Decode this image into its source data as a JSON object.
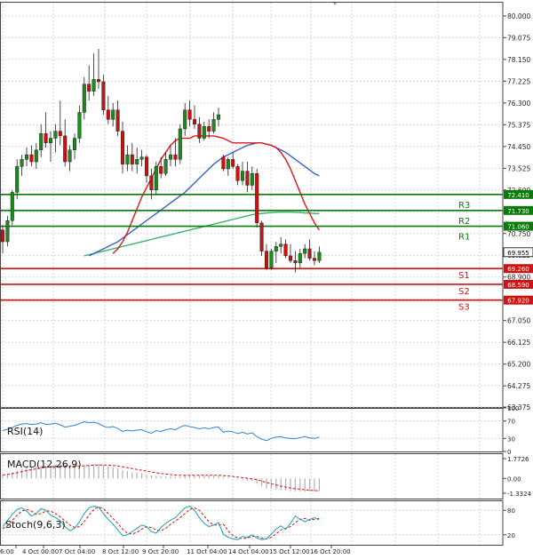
{
  "colors": {
    "background": "#ffffff",
    "grid": "#d6d6d6",
    "candle_up": "#1e8a1e",
    "candle_down": "#cc1111",
    "wick": "#222222",
    "ma_fast": "#e01818",
    "ma_mid": "#3a5fcd",
    "ma_slow": "#3cb371",
    "resistance": "#0a7a0a",
    "support": "#d41111",
    "current_price": "#000000",
    "indicator_line": "#2f7fd0",
    "signal_dash": "#d41111",
    "hist": "#b0b0b0"
  },
  "chart_data": [
    {
      "type": "candlestick",
      "title": "",
      "ylabel": "",
      "ylim": [
        63.375,
        80.6
      ],
      "y_ticks": [
        "80.000",
        "79.075",
        "78.150",
        "77.225",
        "76.300",
        "75.375",
        "74.450",
        "73.525",
        "72.600",
        "71.675",
        "70.750",
        "69.825",
        "68.900",
        "67.975",
        "67.050",
        "66.125",
        "65.200",
        "64.275",
        "63.375"
      ],
      "x_labels": [
        "6:00",
        "4 Oct 00:00",
        "7 Oct 04:00",
        "8 Oct 12:00",
        "9 Oct 20:00",
        "11 Oct 04:00",
        "14 Oct 04:00",
        "15 Oct 12:00",
        "16 Oct 20:00"
      ],
      "candles": [
        [
          70.9,
          71.1,
          69.9,
          70.4
        ],
        [
          70.4,
          71.5,
          70.2,
          71.3
        ],
        [
          71.3,
          72.6,
          71.1,
          72.5
        ],
        [
          72.5,
          73.9,
          72.2,
          73.6
        ],
        [
          73.6,
          74.1,
          73.2,
          73.9
        ],
        [
          73.9,
          74.4,
          73.6,
          74.1
        ],
        [
          74.1,
          74.5,
          73.6,
          73.8
        ],
        [
          73.8,
          74.6,
          73.5,
          74.3
        ],
        [
          74.3,
          75.4,
          74.0,
          75.0
        ],
        [
          75.0,
          75.9,
          74.4,
          74.6
        ],
        [
          74.6,
          75.1,
          73.8,
          74.8
        ],
        [
          74.8,
          75.4,
          74.2,
          75.1
        ],
        [
          75.1,
          76.4,
          74.5,
          74.9
        ],
        [
          74.9,
          75.6,
          73.6,
          73.8
        ],
        [
          73.8,
          74.5,
          73.4,
          74.3
        ],
        [
          74.3,
          75.0,
          73.9,
          74.8
        ],
        [
          74.8,
          76.2,
          74.6,
          75.9
        ],
        [
          75.9,
          77.4,
          75.6,
          77.1
        ],
        [
          77.1,
          77.9,
          76.4,
          76.8
        ],
        [
          76.8,
          78.4,
          76.6,
          77.3
        ],
        [
          77.3,
          78.6,
          76.9,
          77.2
        ],
        [
          77.2,
          77.5,
          75.8,
          76.0
        ],
        [
          76.0,
          76.6,
          75.4,
          75.6
        ],
        [
          75.6,
          76.3,
          75.3,
          76.0
        ],
        [
          76.0,
          76.4,
          74.9,
          75.1
        ],
        [
          75.1,
          75.5,
          73.3,
          73.7
        ],
        [
          73.7,
          74.5,
          73.4,
          74.1
        ],
        [
          74.1,
          74.6,
          73.4,
          73.7
        ],
        [
          73.7,
          74.4,
          73.3,
          73.9
        ],
        [
          73.9,
          74.3,
          73.6,
          74.0
        ],
        [
          74.0,
          74.1,
          72.9,
          73.2
        ],
        [
          73.2,
          73.5,
          72.2,
          72.6
        ],
        [
          72.6,
          73.8,
          72.4,
          73.6
        ],
        [
          73.6,
          74.0,
          73.1,
          73.3
        ],
        [
          73.3,
          74.2,
          73.2,
          73.9
        ],
        [
          73.9,
          74.5,
          73.6,
          74.1
        ],
        [
          74.1,
          74.8,
          73.6,
          73.9
        ],
        [
          73.9,
          75.4,
          73.7,
          75.2
        ],
        [
          75.2,
          76.3,
          74.9,
          76.0
        ],
        [
          76.0,
          76.4,
          75.3,
          75.6
        ],
        [
          75.6,
          76.2,
          75.2,
          75.4
        ],
        [
          75.4,
          75.7,
          74.6,
          74.8
        ],
        [
          74.8,
          75.5,
          74.7,
          75.3
        ],
        [
          75.3,
          75.6,
          74.8,
          75.1
        ],
        [
          75.1,
          75.9,
          75.0,
          75.6
        ],
        [
          75.6,
          76.1,
          75.3,
          75.8
        ],
        [
          74.0,
          74.1,
          73.4,
          73.5
        ],
        [
          73.5,
          74.0,
          73.2,
          73.9
        ],
        [
          73.9,
          74.2,
          73.5,
          73.6
        ],
        [
          73.6,
          73.7,
          72.8,
          73.0
        ],
        [
          73.0,
          73.8,
          72.8,
          73.4
        ],
        [
          73.4,
          73.8,
          72.5,
          72.8
        ],
        [
          72.8,
          73.6,
          72.6,
          73.3
        ],
        [
          73.3,
          73.5,
          71.0,
          71.2
        ],
        [
          71.2,
          71.3,
          69.8,
          70.0
        ],
        [
          70.0,
          70.3,
          69.2,
          69.3
        ],
        [
          69.3,
          70.1,
          69.2,
          70.0
        ],
        [
          70.0,
          70.4,
          69.5,
          70.2
        ],
        [
          70.2,
          70.6,
          69.9,
          70.3
        ],
        [
          70.3,
          70.5,
          69.7,
          69.8
        ],
        [
          69.8,
          70.3,
          69.5,
          69.6
        ],
        [
          69.6,
          70.0,
          69.1,
          69.5
        ],
        [
          69.5,
          70.1,
          69.3,
          69.9
        ],
        [
          69.9,
          70.3,
          69.7,
          70.1
        ],
        [
          70.1,
          70.5,
          69.6,
          69.7
        ],
        [
          69.7,
          70.0,
          69.4,
          69.6
        ],
        [
          69.6,
          70.2,
          69.5,
          69.955
        ]
      ],
      "ma_fast": [
        69.9,
        70.1,
        70.4,
        70.8,
        71.3,
        71.8,
        72.3,
        72.7,
        73.1,
        73.5,
        73.9,
        74.2,
        74.5,
        74.7,
        74.8,
        74.8,
        74.8,
        74.9,
        74.9,
        74.9,
        74.9,
        74.9,
        74.85,
        74.8,
        74.7,
        74.6,
        74.6,
        74.6,
        74.6,
        74.6,
        74.6,
        74.6,
        74.55,
        74.5,
        74.4,
        74.2,
        73.9,
        73.5,
        73.0,
        72.5,
        72.0,
        71.6,
        71.2,
        70.9
      ],
      "ma_mid": [
        69.8,
        69.9,
        70.0,
        70.1,
        70.2,
        70.3,
        70.4,
        70.55,
        70.7,
        70.85,
        71.0,
        71.15,
        71.3,
        71.45,
        71.6,
        71.75,
        71.9,
        72.05,
        72.2,
        72.35,
        72.5,
        72.7,
        72.9,
        73.1,
        73.3,
        73.5,
        73.7,
        73.85,
        74.0,
        74.1,
        74.2,
        74.3,
        74.4,
        74.5,
        74.55,
        74.6,
        74.6,
        74.55,
        74.5,
        74.4,
        74.3,
        74.2,
        74.05,
        73.9,
        73.75,
        73.6,
        73.45,
        73.3,
        73.2
      ],
      "ma_slow": [
        69.8,
        69.85,
        69.9,
        69.95,
        70.0,
        70.05,
        70.1,
        70.15,
        70.2,
        70.25,
        70.3,
        70.35,
        70.4,
        70.45,
        70.5,
        70.55,
        70.6,
        70.65,
        70.7,
        70.75,
        70.8,
        70.85,
        70.9,
        70.95,
        71.0,
        71.05,
        71.1,
        71.15,
        71.2,
        71.25,
        71.3,
        71.35,
        71.4,
        71.45,
        71.5,
        71.55,
        71.58,
        71.6,
        71.62,
        71.64,
        71.65,
        71.66,
        71.66,
        71.66,
        71.65,
        71.64,
        71.62,
        71.62,
        71.6,
        71.6
      ],
      "levels": [
        {
          "name": "R3",
          "value": 72.41,
          "label": "72.410",
          "kind": "resistance"
        },
        {
          "name": "R2",
          "value": 71.73,
          "label": "71.730",
          "kind": "resistance"
        },
        {
          "name": "R1",
          "value": 71.06,
          "label": "71.060",
          "kind": "resistance"
        },
        {
          "name": "S1",
          "value": 69.26,
          "label": "69.260",
          "kind": "support"
        },
        {
          "name": "S2",
          "value": 68.59,
          "label": "68.590",
          "kind": "support"
        },
        {
          "name": "S3",
          "value": 67.92,
          "label": "67.920",
          "kind": "support"
        }
      ],
      "current_price": {
        "value": 69.955,
        "label": "69.955"
      }
    },
    {
      "type": "line",
      "title": "RSI(14)",
      "ylim": [
        0,
        100
      ],
      "y_ticks": [
        "100",
        "70",
        "30",
        "0"
      ],
      "values": [
        48,
        51,
        55,
        60,
        63,
        64,
        62,
        63,
        66,
        62,
        63,
        65,
        61,
        56,
        58,
        60,
        64,
        68,
        66,
        67,
        64,
        58,
        55,
        57,
        53,
        46,
        49,
        47,
        49,
        50,
        45,
        42,
        48,
        46,
        50,
        52,
        50,
        56,
        60,
        57,
        55,
        52,
        54,
        52,
        55,
        56,
        44,
        47,
        45,
        41,
        44,
        40,
        43,
        34,
        28,
        25,
        30,
        33,
        34,
        31,
        30,
        29,
        32,
        34,
        31,
        30,
        33
      ]
    },
    {
      "type": "bar",
      "title": "MACD(12,26,9)",
      "ylim": [
        -1.3324,
        1.7726
      ],
      "y_ticks": [
        "1.7726",
        "0.00",
        "-1.3324"
      ],
      "histogram": [
        0.3,
        0.4,
        0.55,
        0.7,
        0.85,
        0.95,
        1.0,
        1.05,
        1.1,
        1.15,
        1.15,
        1.2,
        1.2,
        1.15,
        1.1,
        1.05,
        1.1,
        1.2,
        1.25,
        1.3,
        1.3,
        1.2,
        1.1,
        1.0,
        0.9,
        0.75,
        0.65,
        0.55,
        0.5,
        0.45,
        0.35,
        0.25,
        0.22,
        0.18,
        0.17,
        0.16,
        0.14,
        0.18,
        0.25,
        0.3,
        0.3,
        0.28,
        0.28,
        0.27,
        0.28,
        0.3,
        0.15,
        0.08,
        0.02,
        -0.08,
        -0.12,
        -0.2,
        -0.25,
        -0.45,
        -0.7,
        -0.9,
        -0.95,
        -1.0,
        -1.05,
        -1.1,
        -1.15,
        -1.17,
        -1.18,
        -1.18,
        -1.18,
        -1.17,
        -1.15
      ],
      "signal": [
        0.3,
        0.35,
        0.42,
        0.5,
        0.6,
        0.7,
        0.78,
        0.85,
        0.92,
        0.98,
        1.03,
        1.07,
        1.1,
        1.12,
        1.12,
        1.11,
        1.11,
        1.13,
        1.15,
        1.18,
        1.2,
        1.2,
        1.18,
        1.15,
        1.1,
        1.04,
        0.96,
        0.88,
        0.8,
        0.73,
        0.65,
        0.57,
        0.5,
        0.44,
        0.39,
        0.34,
        0.3,
        0.28,
        0.27,
        0.28,
        0.28,
        0.28,
        0.28,
        0.28,
        0.28,
        0.28,
        0.25,
        0.21,
        0.17,
        0.12,
        0.07,
        0.02,
        -0.04,
        -0.12,
        -0.24,
        -0.37,
        -0.49,
        -0.6,
        -0.7,
        -0.78,
        -0.86,
        -0.92,
        -0.98,
        -1.02,
        -1.06,
        -1.09,
        -1.11
      ]
    },
    {
      "type": "line",
      "title": "Stoch(9,6,3)",
      "ylim": [
        0,
        100
      ],
      "y_ticks": [
        "80",
        "20"
      ],
      "k": [
        40,
        55,
        70,
        82,
        86,
        78,
        66,
        72,
        84,
        80,
        68,
        62,
        55,
        40,
        30,
        36,
        52,
        72,
        86,
        90,
        88,
        72,
        58,
        46,
        32,
        18,
        20,
        28,
        36,
        44,
        40,
        28,
        24,
        38,
        48,
        56,
        62,
        74,
        86,
        90,
        80,
        62,
        48,
        40,
        44,
        50,
        22,
        14,
        10,
        8,
        16,
        14,
        20,
        12,
        8,
        10,
        22,
        34,
        42,
        34,
        48,
        66,
        58,
        52,
        58,
        62,
        56
      ],
      "d": [
        35,
        42,
        55,
        68,
        78,
        82,
        78,
        70,
        72,
        78,
        78,
        72,
        64,
        54,
        44,
        38,
        40,
        52,
        68,
        82,
        88,
        84,
        72,
        60,
        48,
        34,
        24,
        22,
        26,
        34,
        40,
        38,
        32,
        30,
        36,
        46,
        54,
        62,
        72,
        82,
        86,
        80,
        66,
        52,
        44,
        44,
        46,
        30,
        18,
        12,
        11,
        12,
        16,
        16,
        12,
        10,
        14,
        22,
        32,
        36,
        40,
        50,
        58,
        60,
        56,
        58,
        60
      ]
    }
  ]
}
